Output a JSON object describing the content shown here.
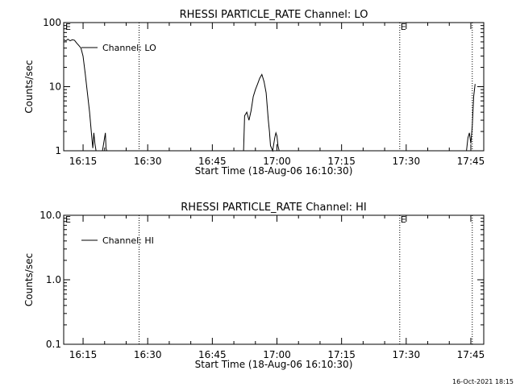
{
  "footer_timestamp": "16-Oct-2021 18:15",
  "chart_data": [
    {
      "type": "line",
      "title": "RHESSI PARTICLE_RATE Channel: LO",
      "xlabel": "Start Time (18-Aug-06 16:10:30)",
      "ylabel": "Counts/sec",
      "yscale": "log",
      "ylim": [
        1,
        100
      ],
      "y_ticks": [
        "1",
        "10",
        "100"
      ],
      "xlim": [
        "16:10:30",
        "17:48:00"
      ],
      "x_ticks": [
        "16:15",
        "16:30",
        "16:45",
        "17:00",
        "17:15",
        "17:30",
        "17:45"
      ],
      "grid": false,
      "legend": {
        "position": "top-left",
        "label": "Channel: LO"
      },
      "vertical_markers": [
        {
          "time": "16:28:00",
          "style": "dotted",
          "label": ""
        },
        {
          "time": "17:28:30",
          "style": "dotted",
          "label": "E"
        },
        {
          "time": "17:45:20",
          "style": "dotted",
          "label": ""
        }
      ],
      "corner_label": "E",
      "series": [
        {
          "name": "Channel: LO",
          "x": [
            "16:10:30",
            "16:11:00",
            "16:11:30",
            "16:12:00",
            "16:12:30",
            "16:13:00",
            "16:13:30",
            "16:14:00",
            "16:14:30",
            "16:15:00",
            "16:15:30",
            "16:16:00",
            "16:16:30",
            "16:17:00",
            "16:17:15",
            "16:17:30",
            "16:17:45",
            "16:18:00",
            "16:18:15",
            "16:18:45",
            "16:19:30",
            "16:20:10",
            "16:20:20",
            "16:20:30"
          ],
          "y": [
            54,
            52,
            55,
            52,
            54,
            53,
            48,
            44,
            40,
            30,
            16,
            8,
            4,
            1.7,
            1.1,
            1.9,
            1.3,
            1,
            1,
            1,
            1,
            1.9,
            1.1,
            1
          ]
        },
        {
          "name": "Channel: LO",
          "x": [
            "16:52:15",
            "16:52:30",
            "16:53:00",
            "16:53:30",
            "16:54:00",
            "16:54:30",
            "16:55:00",
            "16:55:30",
            "16:56:00",
            "16:56:30",
            "16:57:00",
            "16:57:30",
            "16:58:00",
            "16:58:15",
            "16:58:30",
            "16:59:00",
            "16:59:30",
            "16:59:45",
            "17:00:00",
            "17:00:15",
            "17:00:30"
          ],
          "y": [
            1,
            3.5,
            4,
            3,
            4.2,
            7,
            9,
            11,
            13.5,
            15.5,
            12,
            8,
            3,
            2,
            1.2,
            1,
            1.6,
            1.9,
            1.7,
            1.2,
            1
          ]
        },
        {
          "name": "Channel: LO",
          "x": [
            "17:44:00",
            "17:44:20",
            "17:44:40",
            "17:45:00",
            "17:45:20",
            "17:45:40",
            "17:46:00"
          ],
          "y": [
            1,
            1.6,
            1.9,
            1.3,
            2.5,
            7,
            11
          ]
        }
      ]
    },
    {
      "type": "line",
      "title": "RHESSI PARTICLE_RATE Channel: HI",
      "xlabel": "Start Time (18-Aug-06 16:10:30)",
      "ylabel": "Counts/sec",
      "yscale": "log",
      "ylim": [
        0.1,
        10
      ],
      "y_ticks": [
        "0.1",
        "1.0",
        "10.0"
      ],
      "xlim": [
        "16:10:30",
        "17:48:00"
      ],
      "x_ticks": [
        "16:15",
        "16:30",
        "16:45",
        "17:00",
        "17:15",
        "17:30",
        "17:45"
      ],
      "grid": false,
      "legend": {
        "position": "top-left",
        "label": "Channel: HI"
      },
      "vertical_markers": [
        {
          "time": "16:28:00",
          "style": "dotted",
          "label": ""
        },
        {
          "time": "17:28:30",
          "style": "dotted",
          "label": "E"
        },
        {
          "time": "17:45:20",
          "style": "dotted",
          "label": ""
        }
      ],
      "corner_label": "E",
      "series": []
    }
  ]
}
